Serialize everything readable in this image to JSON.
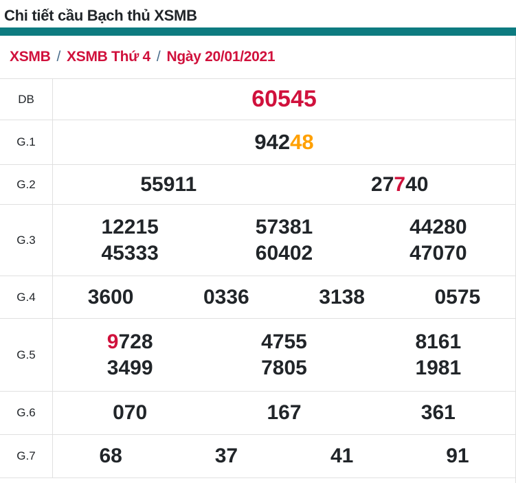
{
  "page": {
    "title": "Chi tiết cầu Bạch thủ XSMB"
  },
  "breadcrumb": {
    "items": [
      "XSMB",
      "XSMB Thứ 4",
      "Ngày 20/01/2021"
    ],
    "separator": "/"
  },
  "colors": {
    "accent": "#0d7b80",
    "crimson": "#d0113c",
    "orange": "#ffa000",
    "dark": "#212529",
    "slash": "#4a6d8c",
    "border": "#e0e0e0"
  },
  "table": {
    "rows": [
      {
        "label": "DB",
        "lines": [
          [
            [
              {
                "text": "60545",
                "color": "crimson"
              }
            ]
          ]
        ]
      },
      {
        "label": "G.1",
        "lines": [
          [
            [
              {
                "text": "942",
                "color": "dark"
              },
              {
                "text": "48",
                "color": "orange"
              }
            ]
          ]
        ]
      },
      {
        "label": "G.2",
        "lines": [
          [
            [
              {
                "text": "55911",
                "color": "dark"
              }
            ],
            [
              {
                "text": "27",
                "color": "dark"
              },
              {
                "text": "7",
                "color": "crimson"
              },
              {
                "text": "40",
                "color": "dark"
              }
            ]
          ]
        ]
      },
      {
        "label": "G.3",
        "lines": [
          [
            [
              {
                "text": "12215",
                "color": "dark"
              }
            ],
            [
              {
                "text": "57381",
                "color": "dark"
              }
            ],
            [
              {
                "text": "44280",
                "color": "dark"
              }
            ]
          ],
          [
            [
              {
                "text": "45333",
                "color": "dark"
              }
            ],
            [
              {
                "text": "60402",
                "color": "dark"
              }
            ],
            [
              {
                "text": "47070",
                "color": "dark"
              }
            ]
          ]
        ]
      },
      {
        "label": "G.4",
        "lines": [
          [
            [
              {
                "text": "3600",
                "color": "dark"
              }
            ],
            [
              {
                "text": "0336",
                "color": "dark"
              }
            ],
            [
              {
                "text": "3138",
                "color": "dark"
              }
            ],
            [
              {
                "text": "0575",
                "color": "dark"
              }
            ]
          ]
        ]
      },
      {
        "label": "G.5",
        "lines": [
          [
            [
              {
                "text": "9",
                "color": "crimson"
              },
              {
                "text": "728",
                "color": "dark"
              }
            ],
            [
              {
                "text": "4755",
                "color": "dark"
              }
            ],
            [
              {
                "text": "8161",
                "color": "dark"
              }
            ]
          ],
          [
            [
              {
                "text": "3499",
                "color": "dark"
              }
            ],
            [
              {
                "text": "7805",
                "color": "dark"
              }
            ],
            [
              {
                "text": "1981",
                "color": "dark"
              }
            ]
          ]
        ]
      },
      {
        "label": "G.6",
        "lines": [
          [
            [
              {
                "text": "070",
                "color": "dark"
              }
            ],
            [
              {
                "text": "167",
                "color": "dark"
              }
            ],
            [
              {
                "text": "361",
                "color": "dark"
              }
            ]
          ]
        ]
      },
      {
        "label": "G.7",
        "lines": [
          [
            [
              {
                "text": "68",
                "color": "dark"
              }
            ],
            [
              {
                "text": "37",
                "color": "dark"
              }
            ],
            [
              {
                "text": "41",
                "color": "dark"
              }
            ],
            [
              {
                "text": "91",
                "color": "dark"
              }
            ]
          ]
        ]
      }
    ]
  }
}
